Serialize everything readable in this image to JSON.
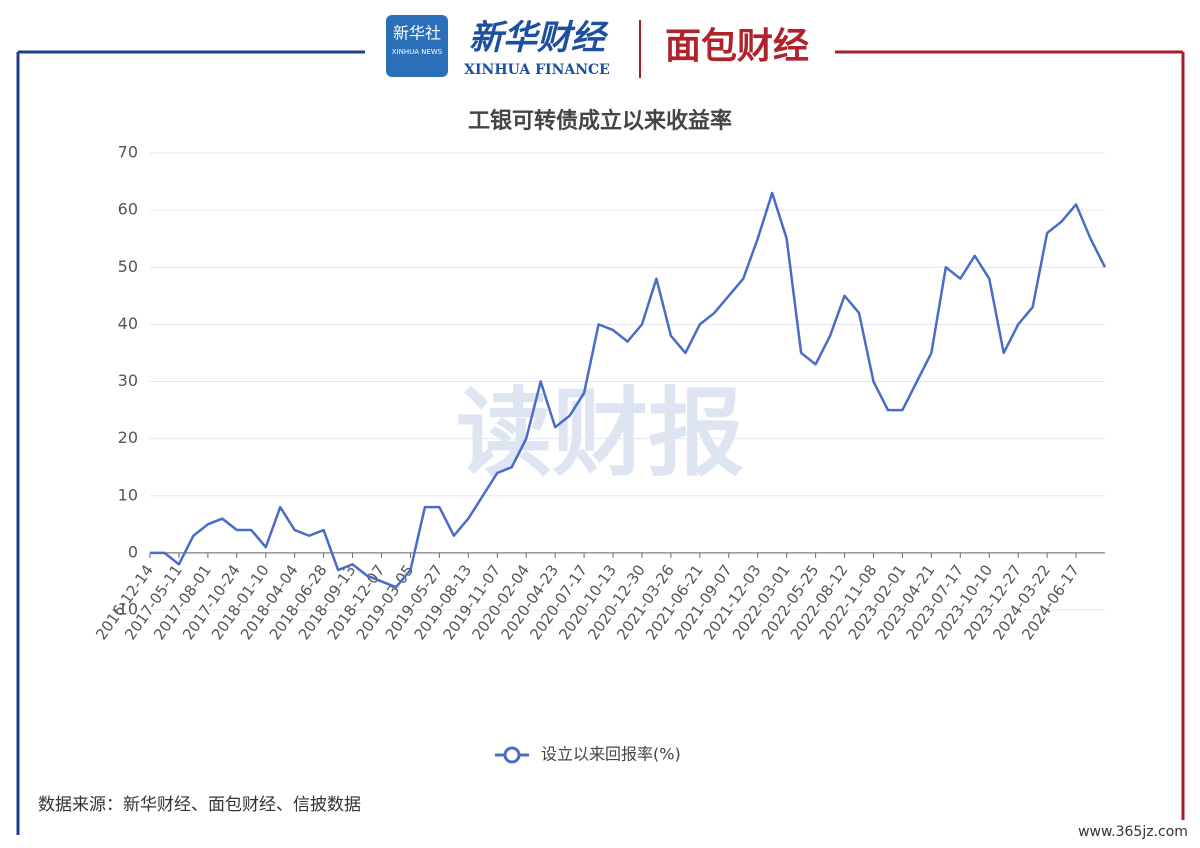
{
  "header": {
    "agency": "新华社",
    "agency_en": "XINHUA NEWS",
    "brand": "新华财经",
    "brand_en": "XINHUA FINANCE",
    "partner": "面包财经"
  },
  "watermark": "读财报",
  "source": "数据来源：新华财经、面包财经、信披数据",
  "site": "www.365jz.com",
  "chart_data": {
    "type": "line",
    "title": "工银可转债成立以来收益率",
    "categories": [
      "2016-12-14",
      null,
      "2017-05-11",
      null,
      "2017-08-01",
      null,
      "2017-10-24",
      null,
      "2018-01-10",
      null,
      "2018-04-04",
      null,
      "2018-06-28",
      null,
      "2018-09-13",
      null,
      "2018-12-07",
      null,
      "2019-03-05",
      null,
      "2019-05-27",
      null,
      "2019-08-13",
      null,
      "2019-11-07",
      null,
      "2020-02-04",
      null,
      "2020-04-23",
      null,
      "2020-07-17",
      null,
      "2020-10-13",
      null,
      "2020-12-30",
      null,
      "2021-03-26",
      null,
      "2021-06-21",
      null,
      "2021-09-07",
      null,
      "2021-12-03",
      null,
      "2022-03-01",
      null,
      "2022-05-25",
      null,
      "2022-08-12",
      null,
      "2022-11-08",
      null,
      "2023-02-01",
      null,
      "2023-04-21",
      null,
      "2023-07-17",
      null,
      "2023-10-10",
      null,
      "2023-12-27",
      null,
      "2024-03-22",
      null,
      "2024-06-17",
      null,
      null
    ],
    "series": [
      {
        "name": "设立以来回报率(%)",
        "color": "#4a6cc8",
        "values": [
          0,
          0,
          -2,
          3,
          5,
          6,
          4,
          4,
          1,
          8,
          4,
          3,
          4,
          -3,
          -2,
          -4,
          -5,
          -6,
          -3,
          8,
          8,
          3,
          6,
          10,
          14,
          15,
          20,
          30,
          22,
          24,
          28,
          40,
          39,
          37,
          40,
          48,
          38,
          35,
          40,
          42,
          45,
          48,
          55,
          63,
          55,
          35,
          33,
          38,
          45,
          42,
          30,
          25,
          25,
          30,
          35,
          50,
          48,
          52,
          48,
          35,
          40,
          43,
          56,
          58,
          61,
          55,
          50
        ]
      }
    ],
    "ylim": [
      -10,
      70
    ],
    "yticks": [
      -10,
      0,
      10,
      20,
      30,
      40,
      50,
      60,
      70
    ],
    "grid": true
  }
}
